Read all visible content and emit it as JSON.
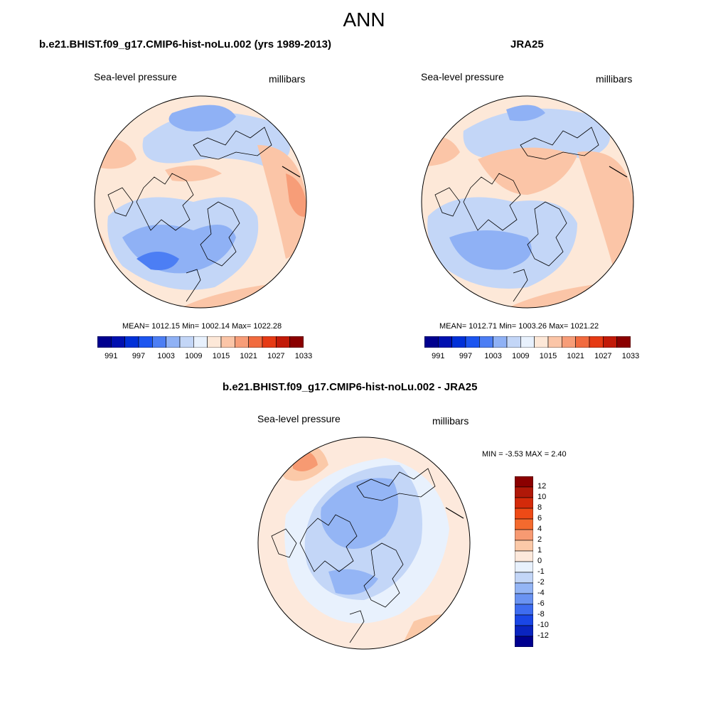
{
  "title": "ANN",
  "panels": [
    {
      "id": "model",
      "title": "b.e21.BHIST.f09_g17.CMIP6-hist-noLu.002 (yrs 1989-2013)",
      "variable": "Sea-level pressure",
      "units": "millibars",
      "stats": "MEAN= 1012.15  Min= 1002.14  Max= 1022.28",
      "colorbar": {
        "levels": [
          "991",
          "997",
          "1003",
          "1009",
          "1015",
          "1021",
          "1027",
          "1033"
        ],
        "colors": [
          "#00008f",
          "#0010b0",
          "#0030d8",
          "#1c55f0",
          "#4c7ef4",
          "#8fb1f5",
          "#c3d6f7",
          "#e8f1fd",
          "#fde8d8",
          "#fbc5a7",
          "#f79d78",
          "#f16b3f",
          "#e63a14",
          "#c21a08",
          "#8b0000"
        ]
      }
    },
    {
      "id": "obs",
      "title": "JRA25",
      "variable": "Sea-level pressure",
      "units": "millibars",
      "stats": "MEAN= 1012.71  Min= 1003.26  Max= 1021.22",
      "colorbar": {
        "levels": [
          "991",
          "997",
          "1003",
          "1009",
          "1015",
          "1021",
          "1027",
          "1033"
        ],
        "colors": [
          "#00008f",
          "#0010b0",
          "#0030d8",
          "#1c55f0",
          "#4c7ef4",
          "#8fb1f5",
          "#c3d6f7",
          "#e8f1fd",
          "#fde8d8",
          "#fbc5a7",
          "#f79d78",
          "#f16b3f",
          "#e63a14",
          "#c21a08",
          "#8b0000"
        ]
      }
    },
    {
      "id": "diff",
      "title": "b.e21.BHIST.f09_g17.CMIP6-hist-noLu.002 - JRA25",
      "variable": "Sea-level pressure",
      "units": "millibars",
      "stats": "MIN =  -3.53 MAX =   2.40",
      "colorbar": {
        "levels": [
          "12",
          "10",
          "8",
          "6",
          "4",
          "2",
          "1",
          "0",
          "-1",
          "-2",
          "-4",
          "-6",
          "-8",
          "-10",
          "-12"
        ],
        "colors": [
          "#8b0000",
          "#b01808",
          "#d42a0a",
          "#ee4a16",
          "#f46a2e",
          "#f79a72",
          "#fbc9a8",
          "#fde9dc",
          "#e8f1fd",
          "#c3d6f7",
          "#94b5f5",
          "#6a93f2",
          "#3e6cf0",
          "#1a46e6",
          "#0a24c0",
          "#00008f"
        ]
      }
    }
  ]
}
